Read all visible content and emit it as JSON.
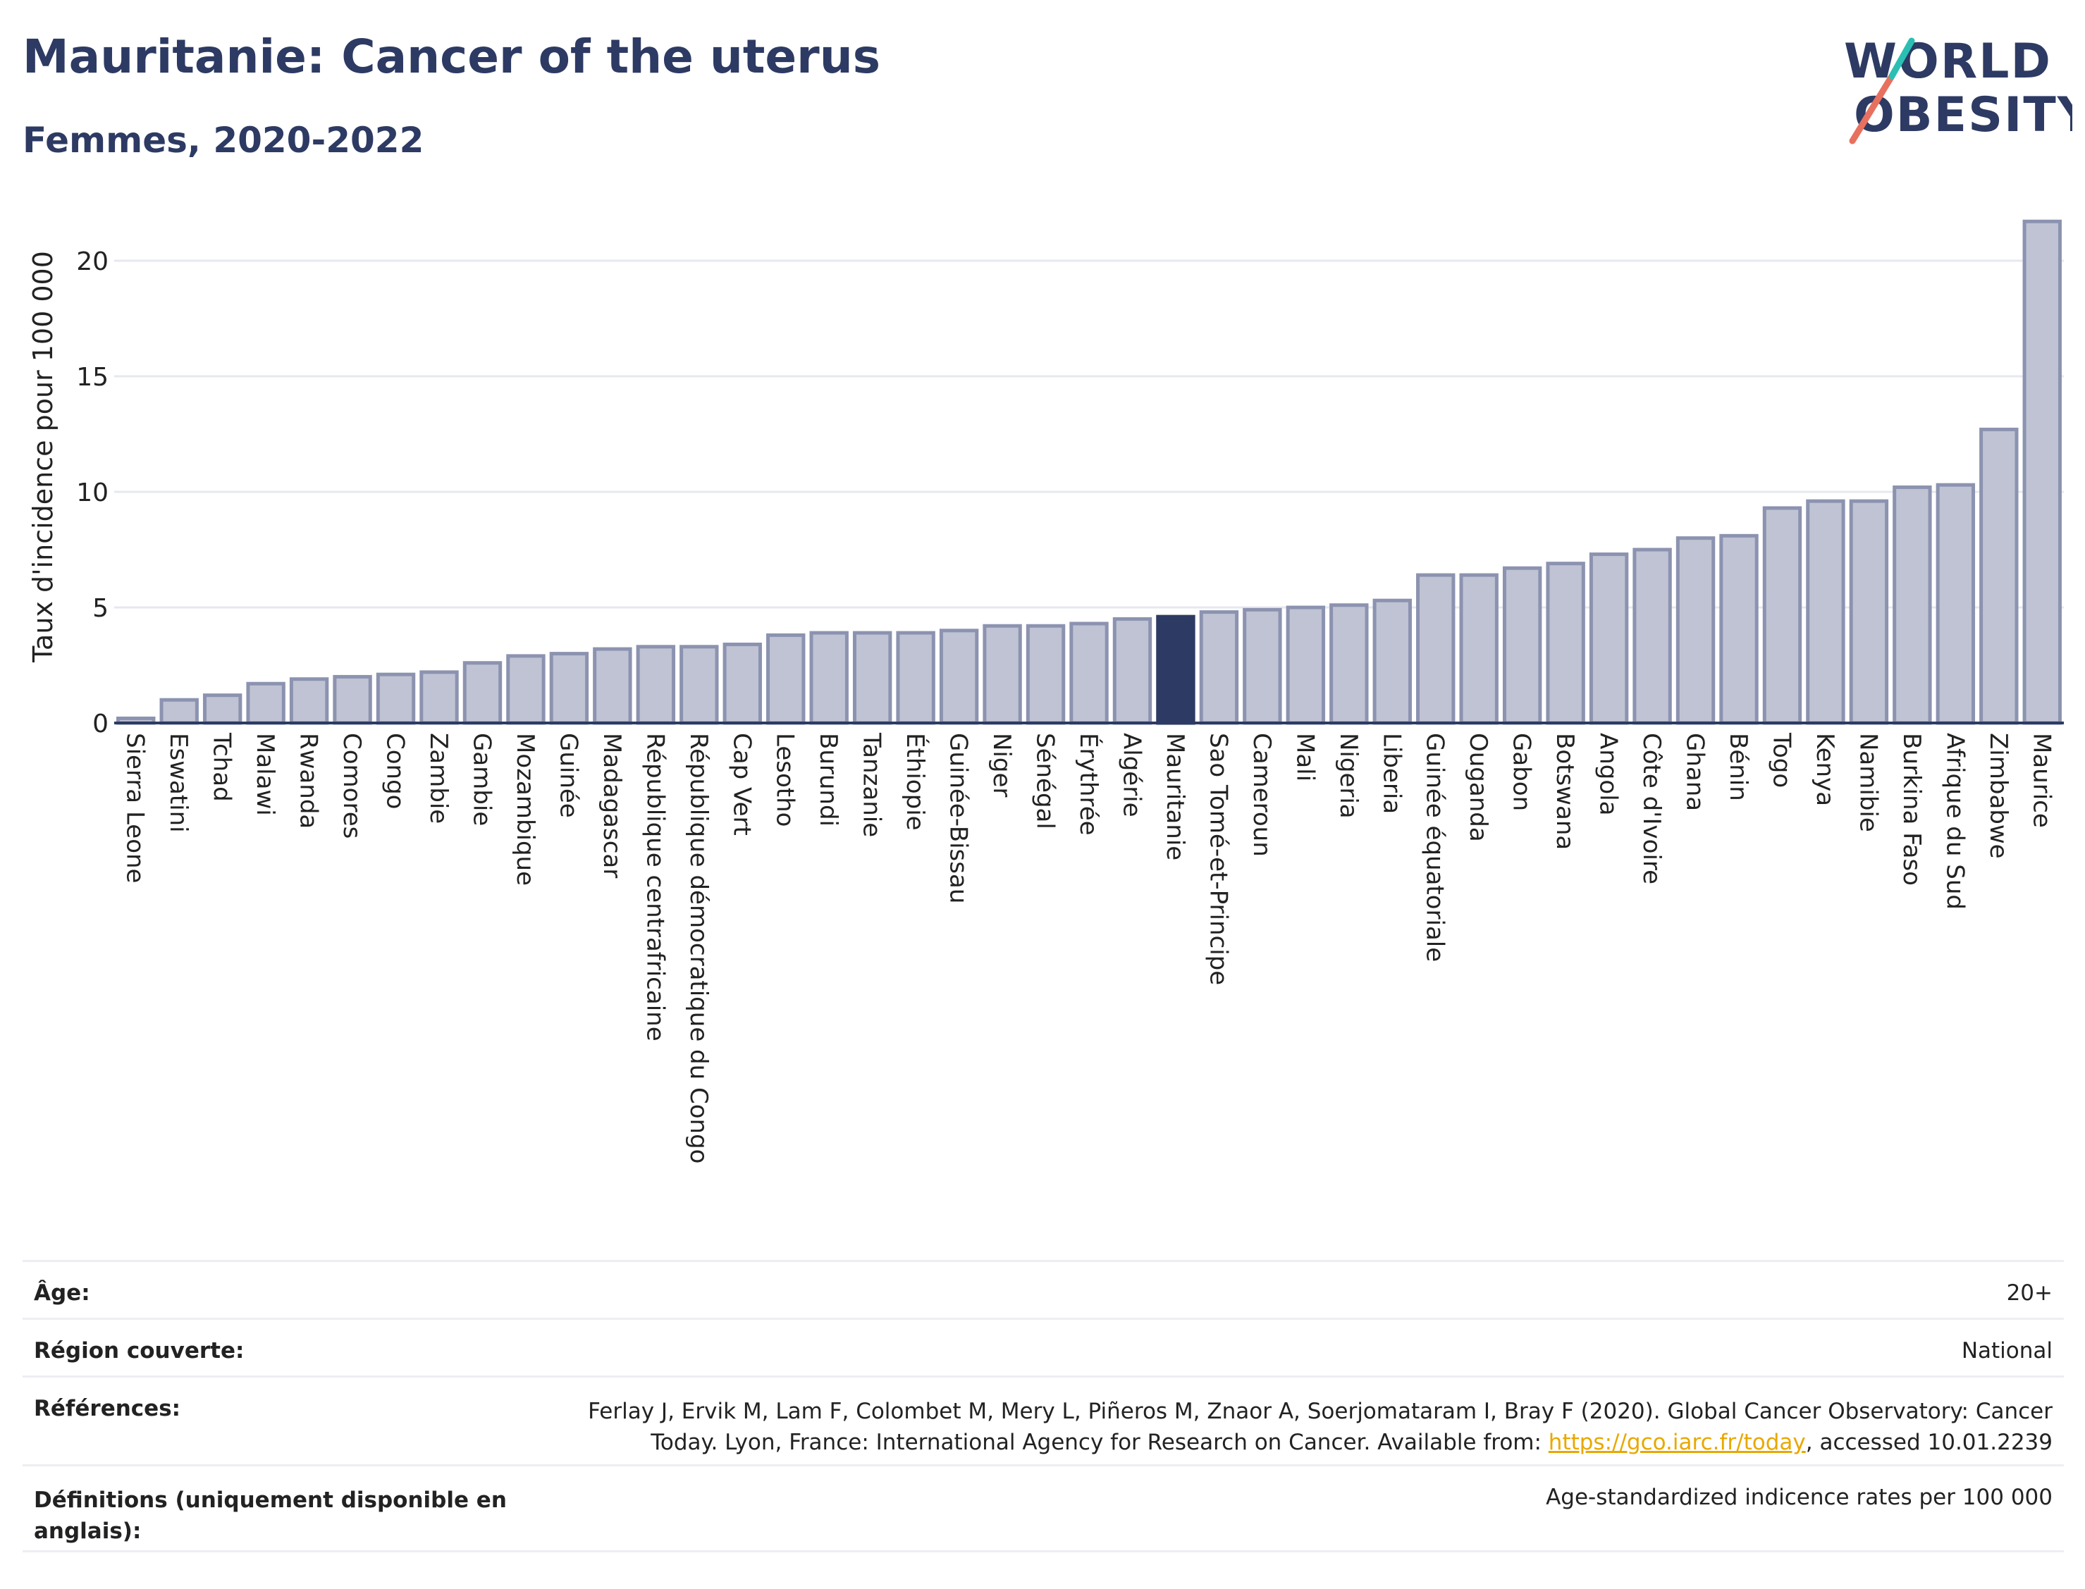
{
  "title": "Mauritanie: Cancer of the uterus",
  "subtitle": "Femmes, 2020-2022",
  "logo": {
    "line1": "WORLD",
    "line2": "OBESITY",
    "colors": [
      "#2d3a63",
      "#e8705f",
      "#2bbfb3"
    ]
  },
  "colors": {
    "bar": "#bfc3d3",
    "bar_stroke": "#8c93b0",
    "highlight": "#2d3a63",
    "grid": "#e6e8ef",
    "text": "#222222"
  },
  "chart_data": {
    "type": "bar",
    "title": "Mauritanie: Cancer of the uterus",
    "subtitle": "Femmes, 2020-2022",
    "ylabel": "Taux d'incidence pour 100 000",
    "xlabel": "",
    "ylim": [
      0,
      22.5
    ],
    "yticks": [
      0,
      5,
      10,
      15,
      20
    ],
    "grid": true,
    "highlight": "Mauritanie",
    "categories": [
      "Sierra Leone",
      "Eswatini",
      "Tchad",
      "Malawi",
      "Rwanda",
      "Comores",
      "Congo",
      "Zambie",
      "Gambie",
      "Mozambique",
      "Guinée",
      "Madagascar",
      "République centrafricaine",
      "République démocratique du Congo",
      "Cap Vert",
      "Lesotho",
      "Burundi",
      "Tanzanie",
      "Éthiopie",
      "Guinée-Bissau",
      "Niger",
      "Sénégal",
      "Érythrée",
      "Algérie",
      "Mauritanie",
      "Sao Tomé-et-Principe",
      "Cameroun",
      "Mali",
      "Nigeria",
      "Liberia",
      "Guinée équatoriale",
      "Ouganda",
      "Gabon",
      "Botswana",
      "Angola",
      "Côte d'Ivoire",
      "Ghana",
      "Bénin",
      "Togo",
      "Kenya",
      "Namibie",
      "Burkina Faso",
      "Afrique du Sud",
      "Zimbabwe",
      "Maurice"
    ],
    "values": [
      0.2,
      1.0,
      1.2,
      1.7,
      1.9,
      2.0,
      2.1,
      2.2,
      2.6,
      2.9,
      3.0,
      3.2,
      3.3,
      3.3,
      3.4,
      3.8,
      3.9,
      3.9,
      3.9,
      4.0,
      4.2,
      4.2,
      4.3,
      4.5,
      4.6,
      4.8,
      4.9,
      5.0,
      5.1,
      5.3,
      6.4,
      6.4,
      6.7,
      6.9,
      7.3,
      7.5,
      8.0,
      8.1,
      9.3,
      9.6,
      9.6,
      10.2,
      10.3,
      12.7,
      21.7
    ]
  },
  "info": {
    "age_label": "Âge:",
    "age_value": "20+",
    "region_label": "Région couverte:",
    "region_value": "National",
    "refs_label": "Références:",
    "refs_line1": "Ferlay J, Ervik M, Lam F, Colombet M, Mery L, Piñeros M, Znaor A, Soerjomataram I, Bray F (2020). Global Cancer Observatory: Cancer",
    "refs_line2_pre": "Today. Lyon, France: International Agency for Research on Cancer. Available from: ",
    "refs_link": "https://gco.iarc.fr/today",
    "refs_line2_post": ", accessed 10.01.2239",
    "def_label_line1": "Définitions (uniquement disponible en",
    "def_label_line2": "anglais):",
    "def_value": "Age-standardized indicence rates per 100 000"
  }
}
